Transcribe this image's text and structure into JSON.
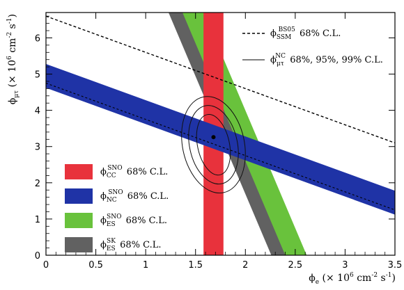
{
  "chart_data": {
    "type": "band-contour",
    "title": "",
    "xlabel": {
      "symbol": "ϕ",
      "sub": "e",
      "rest_pre": " (× 10",
      "exp1": "6",
      "rest_mid": " cm",
      "exp2": "-2",
      "rest_mid2": " s",
      "exp3": "-1",
      "rest_post": ")"
    },
    "ylabel": {
      "symbol": "ϕ",
      "sub": "μτ",
      "rest_pre": " (× 10",
      "exp1": "6",
      "rest_mid": " cm",
      "exp2": "-2",
      "rest_mid2": " s",
      "exp3": "-1",
      "rest_post": ")"
    },
    "xlim": [
      0,
      3.5
    ],
    "ylim": [
      0,
      6.7
    ],
    "x_ticks": [
      "0",
      "0.5",
      "1",
      "1.5",
      "2",
      "2.5",
      "3",
      "3.5"
    ],
    "y_ticks": [
      "0",
      "1",
      "2",
      "3",
      "4",
      "5",
      "6"
    ],
    "colors": {
      "cc": "#e8323c",
      "nc": "#1f33a6",
      "es": "#69c23c",
      "es_sk": "#616161"
    },
    "bands": {
      "es": {
        "center_x_at_y0": 2.475,
        "slope_dy_dx": -6.5,
        "half_width_x": 0.14
      },
      "es_sk": {
        "center_x_at_y0": 2.33,
        "slope_dy_dx": -6.5,
        "half_width_x": 0.07
      },
      "cc": {
        "x_min": 1.58,
        "x_max": 1.78
      },
      "nc": {
        "center_y_at_x0": 4.95,
        "slope_dy_dx": -1,
        "half_width_y": 0.33
      }
    },
    "lines": {
      "ssm": {
        "intercept": 6.6,
        "slope": -1,
        "x_range": [
          0,
          3.5
        ]
      },
      "nc_center": {
        "intercept": 4.75,
        "slope": -1,
        "x_range": [
          0,
          3.5
        ]
      }
    },
    "best_fit": {
      "x": 1.68,
      "y": 3.26
    },
    "contours": {
      "center": {
        "x": 1.68,
        "y": 3.05
      },
      "semi_axes": [
        [
          0.16,
          0.85
        ],
        [
          0.24,
          1.1
        ],
        [
          0.31,
          1.35
        ]
      ],
      "tilt_deg": -12
    },
    "legend_top": [
      {
        "style": "dashed",
        "symbol": "ϕ",
        "sub": "SSM",
        "sup": "BS05",
        "text": " 68% C.L."
      },
      {
        "style": "solid",
        "symbol": "ϕ",
        "sub": "μτ",
        "sup": "NC",
        "text": " 68%, 95%, 99% C.L."
      }
    ],
    "legend_bottom": [
      {
        "key": "cc",
        "symbol": "ϕ",
        "sub": "CC",
        "sup": "SNO",
        "text": " 68% C.L."
      },
      {
        "key": "nc",
        "symbol": "ϕ",
        "sub": "NC",
        "sup": "SNO",
        "text": " 68% C.L."
      },
      {
        "key": "es",
        "symbol": "ϕ",
        "sub": "ES",
        "sup": "SNO",
        "text": " 68% C.L."
      },
      {
        "key": "es_sk",
        "symbol": "ϕ",
        "sub": "ES",
        "sup": "SK",
        "text": " 68% C.L."
      }
    ]
  }
}
